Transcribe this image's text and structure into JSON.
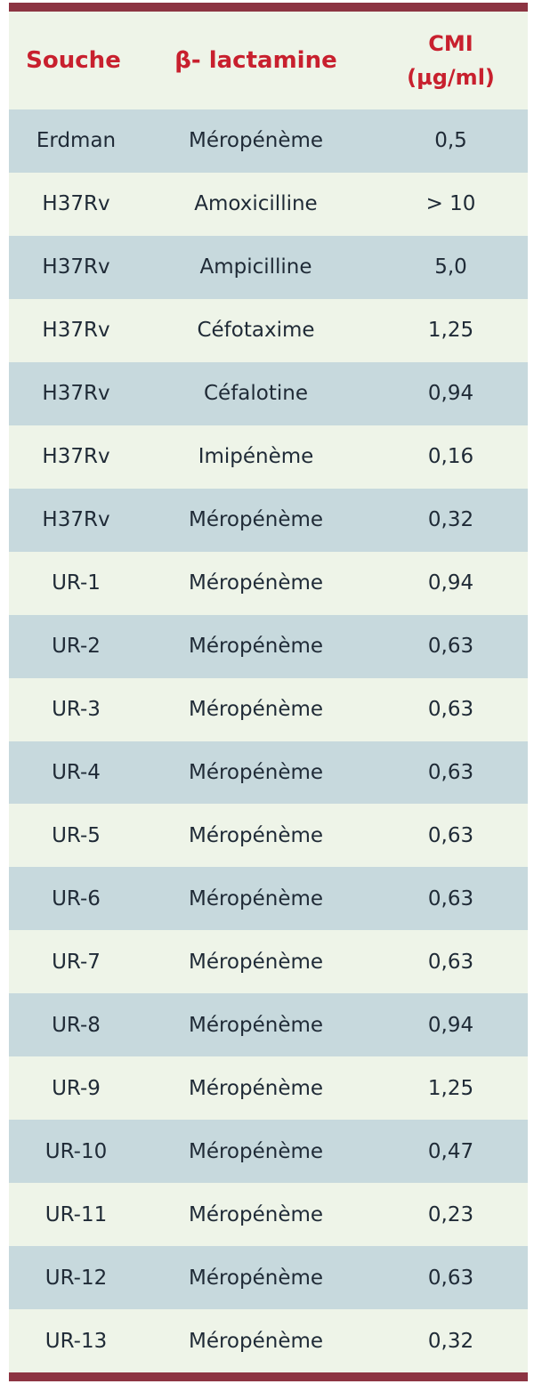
{
  "table": {
    "headers": {
      "strain": "Souche",
      "beta_lactam": "β- lactamine",
      "mic": "CMI\n(µg/ml)"
    },
    "rows": [
      {
        "strain": "Erdman",
        "beta_lactam": "Méropénème",
        "mic": "0,5"
      },
      {
        "strain": "H37Rv",
        "beta_lactam": "Amoxicilline",
        "mic": "> 10"
      },
      {
        "strain": "H37Rv",
        "beta_lactam": "Ampicilline",
        "mic": "5,0"
      },
      {
        "strain": "H37Rv",
        "beta_lactam": "Céfotaxime",
        "mic": "1,25"
      },
      {
        "strain": "H37Rv",
        "beta_lactam": "Céfalotine",
        "mic": "0,94"
      },
      {
        "strain": "H37Rv",
        "beta_lactam": "Imipénème",
        "mic": "0,16"
      },
      {
        "strain": "H37Rv",
        "beta_lactam": "Méropénème",
        "mic": "0,32"
      },
      {
        "strain": "UR-1",
        "beta_lactam": "Méropénème",
        "mic": "0,94"
      },
      {
        "strain": "UR-2",
        "beta_lactam": "Méropénème",
        "mic": "0,63"
      },
      {
        "strain": "UR-3",
        "beta_lactam": "Méropénème",
        "mic": "0,63"
      },
      {
        "strain": "UR-4",
        "beta_lactam": "Méropénème",
        "mic": "0,63"
      },
      {
        "strain": "UR-5",
        "beta_lactam": "Méropénème",
        "mic": "0,63"
      },
      {
        "strain": "UR-6",
        "beta_lactam": "Méropénème",
        "mic": "0,63"
      },
      {
        "strain": "UR-7",
        "beta_lactam": "Méropénème",
        "mic": "0,63"
      },
      {
        "strain": "UR-8",
        "beta_lactam": "Méropénème",
        "mic": "0,94"
      },
      {
        "strain": "UR-9",
        "beta_lactam": "Méropénème",
        "mic": "1,25"
      },
      {
        "strain": "UR-10",
        "beta_lactam": "Méropénème",
        "mic": "0,47"
      },
      {
        "strain": "UR-11",
        "beta_lactam": "Méropénème",
        "mic": "0,23"
      },
      {
        "strain": "UR-12",
        "beta_lactam": "Méropénème",
        "mic": "0,63"
      },
      {
        "strain": "UR-13",
        "beta_lactam": "Méropénème",
        "mic": "0,32"
      }
    ]
  },
  "colors": {
    "rule": "#8c3442",
    "header_text": "#c8202e",
    "row_dark": "#c7d9dd",
    "row_light": "#eef4e8"
  }
}
